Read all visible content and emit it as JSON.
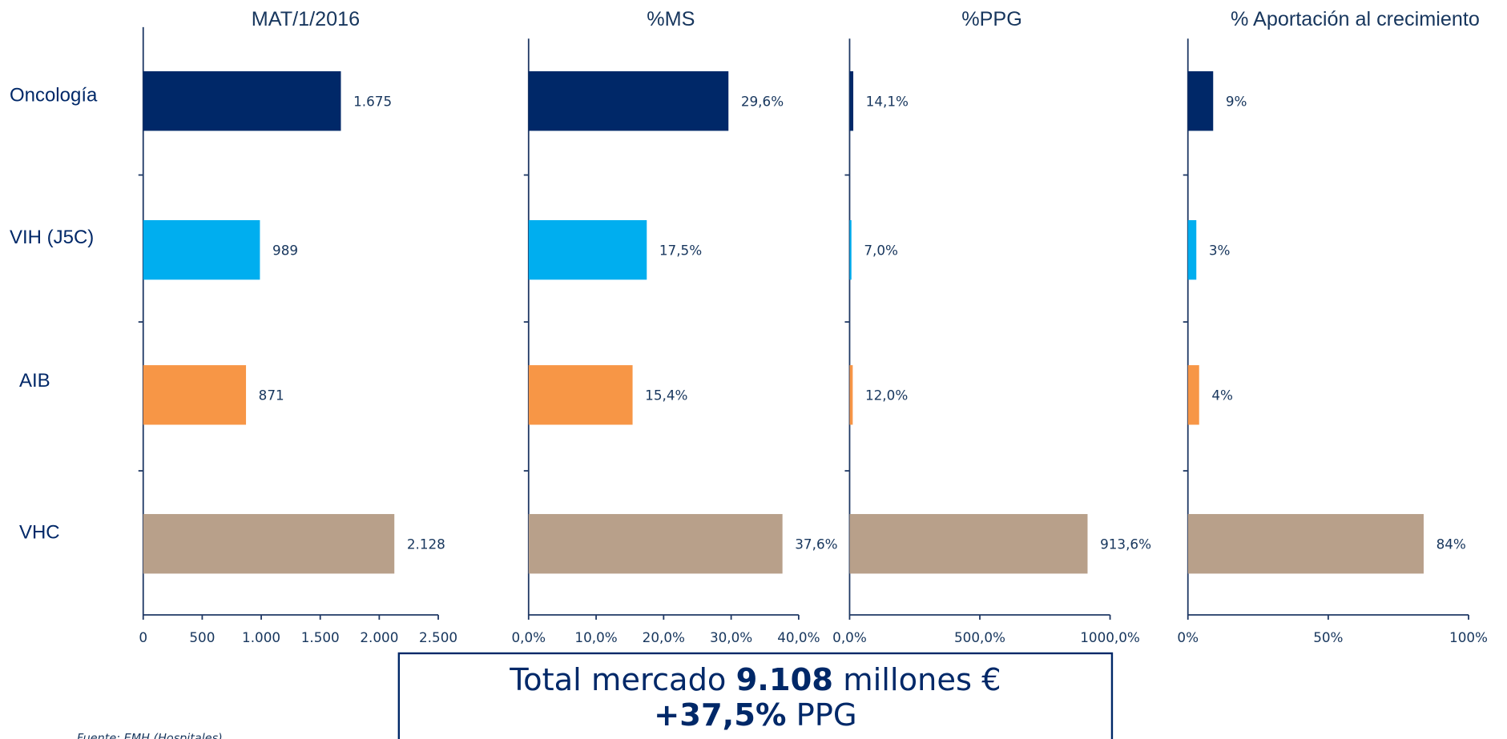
{
  "chart_data": [
    {
      "type": "barh",
      "title": "MAT/1/2016",
      "categories": [
        "Oncología",
        "VIH (J5C)",
        "AIB",
        "VHC"
      ],
      "values": [
        1675,
        989,
        871,
        2128
      ],
      "value_labels": [
        "1.675",
        "989",
        "871",
        "2.128"
      ],
      "colors": [
        "#002868",
        "#00aeef",
        "#f79646",
        "#b8a08a"
      ],
      "xlim": [
        0,
        2500
      ],
      "xticks": [
        0,
        500,
        {
          "value": 1000,
          "label": "1.000"
        },
        {
          "value": 1500,
          "label": "1.500"
        },
        {
          "value": 2000,
          "label": "2.000"
        },
        {
          "value": 2500,
          "label": "2.500"
        }
      ]
    },
    {
      "type": "barh",
      "title": "%MS",
      "values": [
        29.6,
        17.5,
        15.4,
        37.6
      ],
      "value_labels": [
        "29,6%",
        "17,5%",
        "15,4%",
        "37,6%"
      ],
      "colors": [
        "#002868",
        "#00aeef",
        "#f79646",
        "#b8a08a"
      ],
      "xlim": [
        0,
        40
      ],
      "xticks": [
        {
          "value": 0,
          "label": "0,0%"
        },
        {
          "value": 10,
          "label": "10,0%"
        },
        {
          "value": 20,
          "label": "20,0%"
        },
        {
          "value": 30,
          "label": "30,0%"
        },
        {
          "value": 40,
          "label": "40,0%"
        }
      ]
    },
    {
      "type": "barh",
      "title": "%PPG",
      "values": [
        14.1,
        7.0,
        12.0,
        913.6
      ],
      "value_labels": [
        "14,1%",
        "7,0%",
        "12,0%",
        "913,6%"
      ],
      "colors": [
        "#002868",
        "#00aeef",
        "#f79646",
        "#b8a08a"
      ],
      "xlim": [
        0,
        1000
      ],
      "xticks": [
        {
          "value": 0,
          "label": "0,0%"
        },
        {
          "value": 500,
          "label": "500,0%"
        },
        {
          "value": 1000,
          "label": "1000,0%"
        }
      ]
    },
    {
      "type": "barh",
      "title": "% Aportación al crecimiento",
      "values": [
        9,
        3,
        4,
        84
      ],
      "value_labels": [
        "9%",
        "3%",
        "4%",
        "84%"
      ],
      "colors": [
        "#002868",
        "#00aeef",
        "#f79646",
        "#b8a08a"
      ],
      "xlim": [
        0,
        100
      ],
      "xticks": [
        {
          "value": 0,
          "label": "0%"
        },
        {
          "value": 50,
          "label": "50%"
        },
        {
          "value": 100,
          "label": "100%"
        }
      ]
    }
  ],
  "summary": {
    "line1_text": "Total mercado",
    "line1_bold": "9.108",
    "line1_rest": "millones €",
    "line2_bold": "+37,5%",
    "line2_rest": "PPG"
  },
  "source": "Fuente: EMH (Hospitales)"
}
